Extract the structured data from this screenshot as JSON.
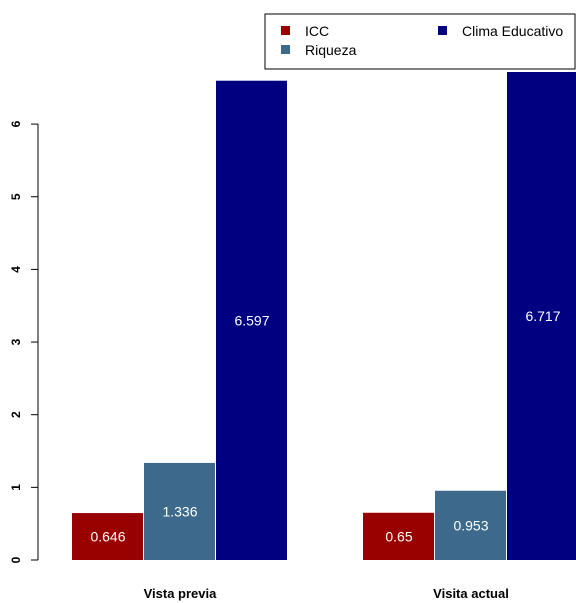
{
  "chart_data": {
    "type": "bar",
    "categories": [
      "Vista previa",
      "Visita actual"
    ],
    "series": [
      {
        "name": "ICC",
        "values": [
          0.646,
          0.65
        ],
        "color": "#990000"
      },
      {
        "name": "Riqueza",
        "values": [
          1.336,
          0.953
        ],
        "color": "#3d6a8c"
      },
      {
        "name": "Clima Educativo",
        "values": [
          6.597,
          6.717
        ],
        "color": "#000080"
      }
    ],
    "data_labels": [
      [
        "0.646",
        "1.336",
        "6.597"
      ],
      [
        "0.65",
        "0.953",
        "6.717"
      ]
    ],
    "yticks": [
      0,
      1,
      2,
      3,
      4,
      5,
      6
    ],
    "ylim": [
      0,
      6.717
    ],
    "grid": false,
    "legend_position": "top-right",
    "legend": [
      "ICC",
      "Clima Educativo",
      "Riqueza"
    ]
  }
}
